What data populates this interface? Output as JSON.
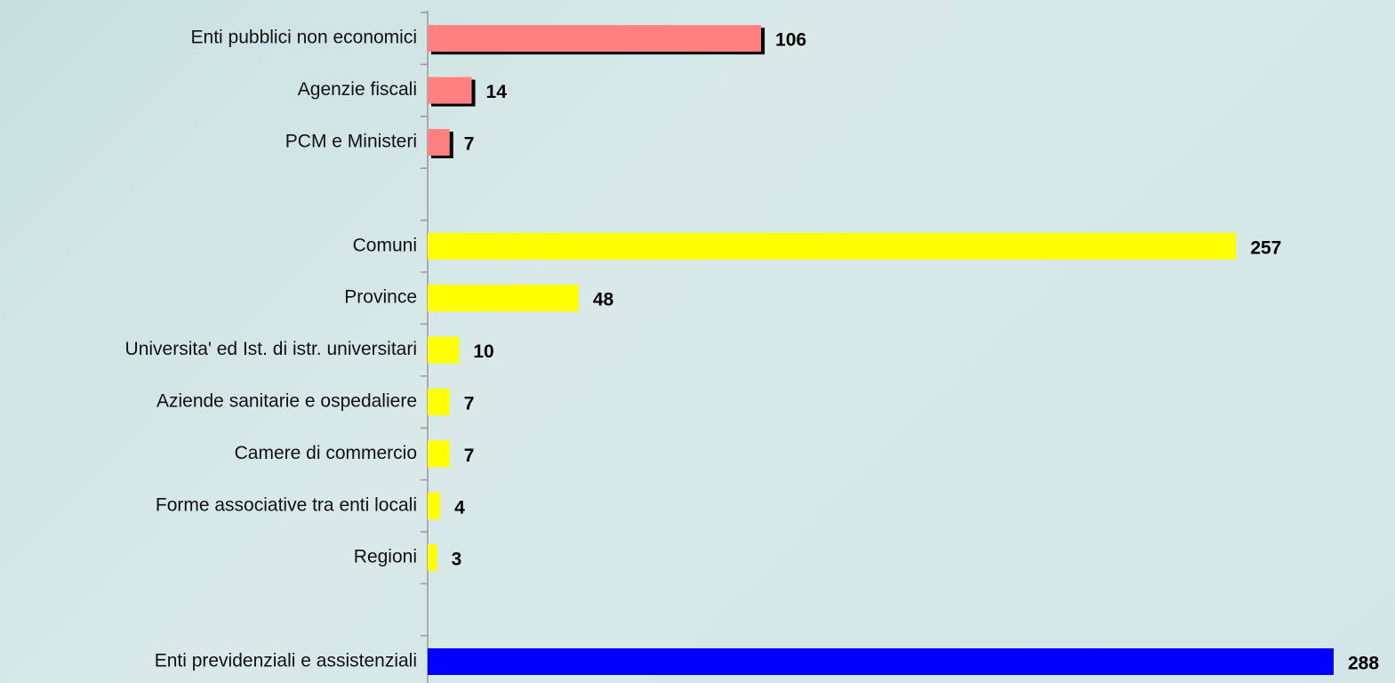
{
  "chart_data": {
    "type": "barh",
    "categories": [
      "Enti pubblici non economici",
      "Agenzie fiscali",
      "PCM e Ministeri",
      null,
      "Comuni",
      "Province",
      "Universita' ed Ist. di istr. universitari",
      "Aziende sanitarie e ospedaliere",
      "Camere di commercio",
      "Forme associative tra enti locali",
      "Regioni",
      null,
      "Enti previdenziali e assistenziali"
    ],
    "values": [
      106,
      14,
      7,
      null,
      257,
      48,
      10,
      7,
      7,
      4,
      3,
      null,
      288
    ],
    "colors": [
      "#ff8080",
      "#ff8080",
      "#ff8080",
      null,
      "#ffff00",
      "#ffff00",
      "#ffff00",
      "#ffff00",
      "#ffff00",
      "#ffff00",
      "#ffff00",
      null,
      "#0000ff"
    ]
  }
}
